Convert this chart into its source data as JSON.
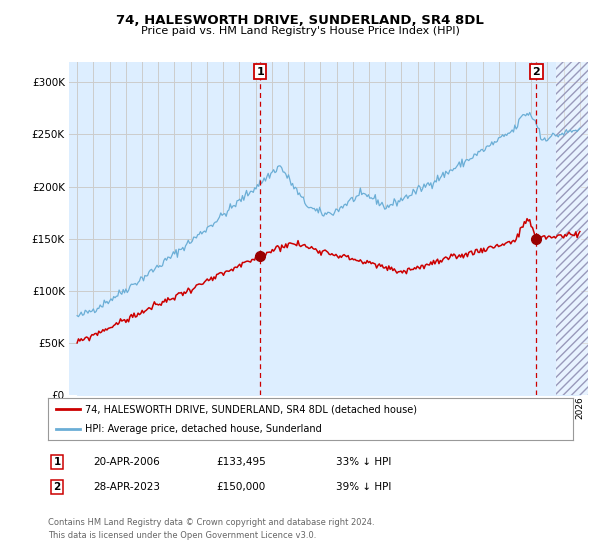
{
  "title": "74, HALESWORTH DRIVE, SUNDERLAND, SR4 8DL",
  "subtitle": "Price paid vs. HM Land Registry's House Price Index (HPI)",
  "legend_line1": "74, HALESWORTH DRIVE, SUNDERLAND, SR4 8DL (detached house)",
  "legend_line2": "HPI: Average price, detached house, Sunderland",
  "footnote": "Contains HM Land Registry data © Crown copyright and database right 2024.\nThis data is licensed under the Open Government Licence v3.0.",
  "annotation1": {
    "label": "1",
    "date": "20-APR-2006",
    "price": "£133,495",
    "pct": "33% ↓ HPI"
  },
  "annotation2": {
    "label": "2",
    "date": "28-APR-2023",
    "price": "£150,000",
    "pct": "39% ↓ HPI"
  },
  "hpi_color": "#6baed6",
  "hpi_fill_color": "#ddeeff",
  "price_color": "#cc0000",
  "dot_color": "#990000",
  "vline_color": "#cc0000",
  "grid_color": "#cccccc",
  "bg_color": "#ddeeff",
  "ylim": [
    0,
    320000
  ],
  "yticks": [
    0,
    50000,
    100000,
    150000,
    200000,
    250000,
    300000
  ],
  "sale1_x": 2006.3,
  "sale1_y": 133495,
  "sale2_x": 2023.32,
  "sale2_y": 150000,
  "xmin": 1994.5,
  "xmax": 2026.5
}
